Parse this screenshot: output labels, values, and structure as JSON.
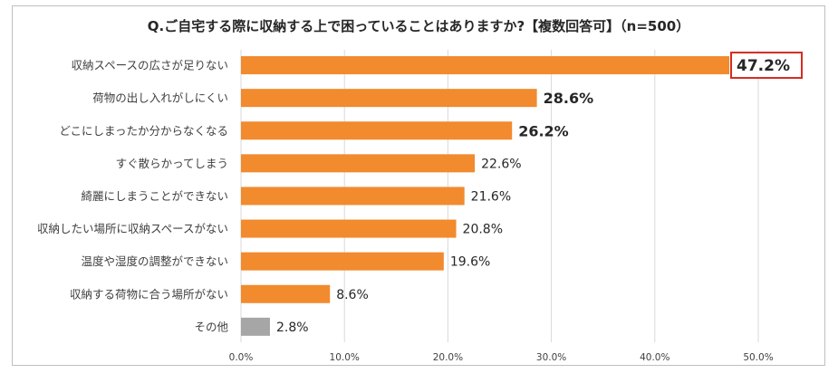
{
  "chart_data": {
    "type": "bar",
    "orientation": "horizontal",
    "title": "Q.ご自宅する際に収納する上で困っていることはありますか?【複数回答可】（n=500）",
    "categories": [
      "収納スペースの広さが足りない",
      "荷物の出し入れがしにくい",
      "どこにしまったか分からなくなる",
      "すぐ散らかってしまう",
      "綺麗にしまうことができない",
      "収納したい場所に収納スペースがない",
      "温度や湿度の調整ができない",
      "収納する荷物に合う場所がない",
      "その他"
    ],
    "values": [
      47.2,
      28.6,
      26.2,
      22.6,
      21.6,
      20.8,
      19.6,
      8.6,
      2.8
    ],
    "value_labels": [
      "47.2%",
      "28.6%",
      "26.2%",
      "22.6%",
      "21.6%",
      "20.8%",
      "19.6%",
      "8.6%",
      "2.8%"
    ],
    "xlim": [
      0,
      50
    ],
    "xticks": [
      "0.0%",
      "10.0%",
      "20.0%",
      "30.0%",
      "40.0%",
      "50.0%"
    ],
    "grid": true,
    "highlight_index": 0,
    "bold_indices": [
      0,
      1,
      2
    ]
  },
  "colors": {
    "bar": "#f28a2e",
    "other_bar": "#a6a6a6",
    "highlight": "#d42a20",
    "grid": "#d9d9d9"
  }
}
